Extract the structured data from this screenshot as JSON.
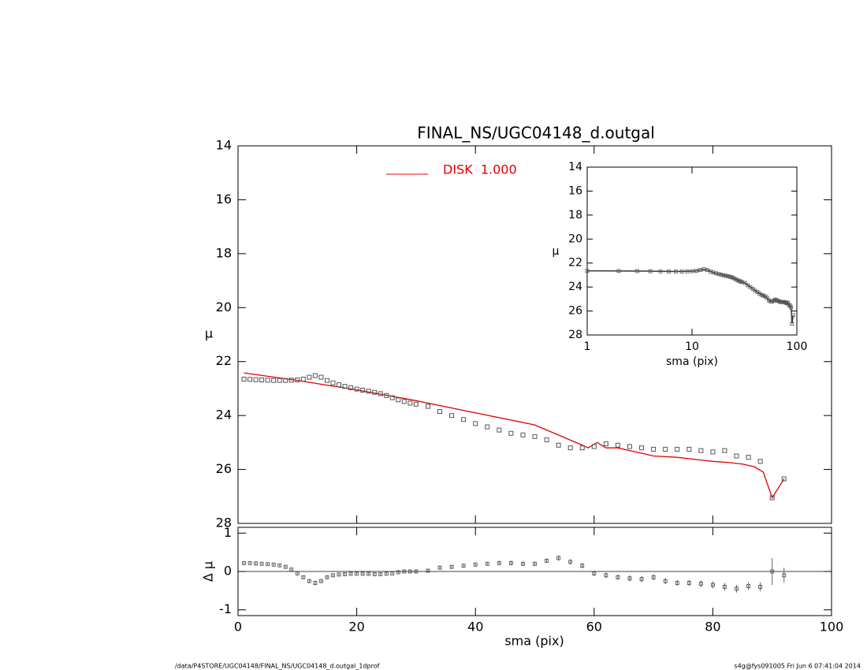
{
  "chart_data": [
    {
      "type": "scatter",
      "title": "FINAL_NS/UGC04148_d.outgal",
      "y_label": "μ",
      "xlim": [
        0,
        100
      ],
      "ylim": [
        28,
        14
      ],
      "yticks": [
        14,
        16,
        18,
        20,
        22,
        24,
        26,
        28
      ],
      "x": [
        1,
        2,
        3,
        4,
        5,
        6,
        7,
        8,
        9,
        10,
        11,
        12,
        13,
        14,
        15,
        16,
        17,
        18,
        19,
        20,
        21,
        22,
        23,
        24,
        25,
        26,
        27,
        28,
        29,
        30,
        32,
        34,
        36,
        38,
        40,
        42,
        44,
        46,
        48,
        50,
        52,
        54,
        56,
        58,
        60,
        62,
        64,
        66,
        68,
        70,
        72,
        74,
        76,
        78,
        80,
        82,
        84,
        86,
        88,
        90,
        92
      ],
      "series": [
        {
          "color": "#555555",
          "values": [
            22.65,
            22.66,
            22.67,
            22.68,
            22.69,
            22.7,
            22.7,
            22.7,
            22.69,
            22.68,
            22.65,
            22.58,
            22.52,
            22.58,
            22.7,
            22.79,
            22.86,
            22.92,
            22.97,
            23.02,
            23.06,
            23.1,
            23.14,
            23.19,
            23.26,
            23.34,
            23.42,
            23.48,
            23.54,
            23.58,
            23.66,
            23.85,
            24.0,
            24.15,
            24.3,
            24.42,
            24.54,
            24.66,
            24.72,
            24.78,
            24.9,
            25.1,
            25.2,
            25.2,
            25.15,
            25.05,
            25.1,
            25.15,
            25.2,
            25.25,
            25.25,
            25.25,
            25.25,
            25.3,
            25.35,
            25.3,
            25.5,
            25.55,
            25.7,
            27.05,
            26.35
          ]
        },
        {
          "name": "DISK  1.000",
          "color": "#e00000",
          "x": [
            1,
            10,
            20,
            30,
            40,
            50,
            58,
            59,
            60.5,
            62,
            64,
            66,
            68,
            70,
            74,
            78,
            80,
            83,
            85,
            87,
            88.5,
            90,
            92
          ],
          "values": [
            22.42,
            22.7,
            23.05,
            23.45,
            23.9,
            24.35,
            25.1,
            25.2,
            25.0,
            25.2,
            25.2,
            25.3,
            25.4,
            25.5,
            25.55,
            25.65,
            25.7,
            25.75,
            25.8,
            25.9,
            26.1,
            27.05,
            26.35
          ]
        }
      ]
    },
    {
      "type": "inset",
      "x_label": "sma (pix)",
      "y_label": "μ",
      "xlog": true,
      "xlim": [
        1,
        100
      ],
      "xticks": [
        1,
        10,
        100
      ],
      "ylim": [
        28,
        14
      ],
      "yticks": [
        14,
        16,
        18,
        20,
        22,
        24,
        26,
        28
      ]
    },
    {
      "type": "residual",
      "x_label": "sma (pix)",
      "y_label": "Δ μ",
      "xlim": [
        0,
        100
      ],
      "xticks": [
        0,
        20,
        40,
        60,
        80,
        100
      ],
      "ylim": [
        -1.15,
        1.15
      ],
      "yticks": [
        -1,
        0,
        1
      ],
      "values": [
        0.22,
        0.22,
        0.21,
        0.2,
        0.19,
        0.18,
        0.16,
        0.12,
        0.05,
        -0.05,
        -0.15,
        -0.25,
        -0.3,
        -0.25,
        -0.15,
        -0.1,
        -0.08,
        -0.07,
        -0.06,
        -0.06,
        -0.06,
        -0.06,
        -0.07,
        -0.07,
        -0.06,
        -0.05,
        -0.02,
        0,
        0,
        0,
        0.02,
        0.1,
        0.12,
        0.15,
        0.18,
        0.2,
        0.22,
        0.22,
        0.2,
        0.2,
        0.28,
        0.35,
        0.25,
        0.15,
        -0.05,
        -0.1,
        -0.15,
        -0.18,
        -0.2,
        -0.15,
        -0.25,
        -0.3,
        -0.3,
        -0.32,
        -0.35,
        -0.4,
        -0.45,
        -0.38,
        -0.4,
        0,
        -0.1
      ],
      "errors": [
        0.03,
        0.03,
        0.03,
        0.03,
        0.03,
        0.03,
        0.03,
        0.03,
        0.03,
        0.03,
        0.04,
        0.05,
        0.06,
        0.05,
        0.04,
        0.03,
        0.03,
        0.03,
        0.03,
        0.03,
        0.03,
        0.03,
        0.03,
        0.03,
        0.03,
        0.03,
        0.03,
        0.03,
        0.03,
        0.03,
        0.04,
        0.05,
        0.05,
        0.05,
        0.05,
        0.05,
        0.05,
        0.06,
        0.06,
        0.06,
        0.06,
        0.07,
        0.07,
        0.07,
        0.07,
        0.07,
        0.07,
        0.08,
        0.08,
        0.08,
        0.08,
        0.08,
        0.08,
        0.09,
        0.09,
        0.1,
        0.1,
        0.1,
        0.12,
        0.35,
        0.2
      ]
    }
  ],
  "footer": {
    "left": "/data/P4STORE/UGC04148/FINAL_NS/UGC04148_d.outgal_1dprof",
    "right": "s4g@fys091005  Fri Jun  6 07:41:04 2014"
  }
}
